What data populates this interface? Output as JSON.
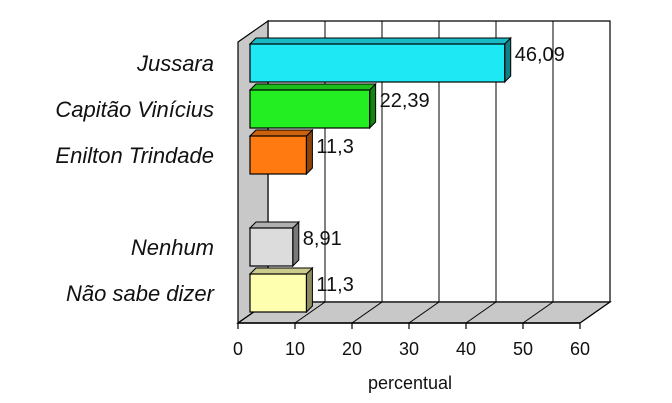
{
  "chart_data": {
    "type": "bar",
    "orientation": "horizontal",
    "style": "3d",
    "categories": [
      "Jussara",
      "Capitão Vinícius",
      "Enilton Trindade",
      "",
      "Nenhum",
      "Não sabe dizer"
    ],
    "values": [
      46.09,
      22.39,
      11.3,
      null,
      8.91,
      11.3
    ],
    "value_labels": [
      "46,09",
      "22,39",
      "11,3",
      "",
      "8,91",
      "11,3"
    ],
    "colors": [
      "#1ee8f4",
      "#22ee22",
      "#ff7a10",
      "",
      "#dcdcdc",
      "#ffffb0"
    ],
    "xlim": [
      0,
      60
    ],
    "x_ticks": [
      0,
      10,
      20,
      30,
      40,
      50,
      60
    ],
    "x_tick_labels": [
      "0",
      "10",
      "20",
      "30",
      "40",
      "50",
      "60"
    ],
    "xlabel": "percentual",
    "title": "",
    "grid": "vertical",
    "legend": "none"
  }
}
